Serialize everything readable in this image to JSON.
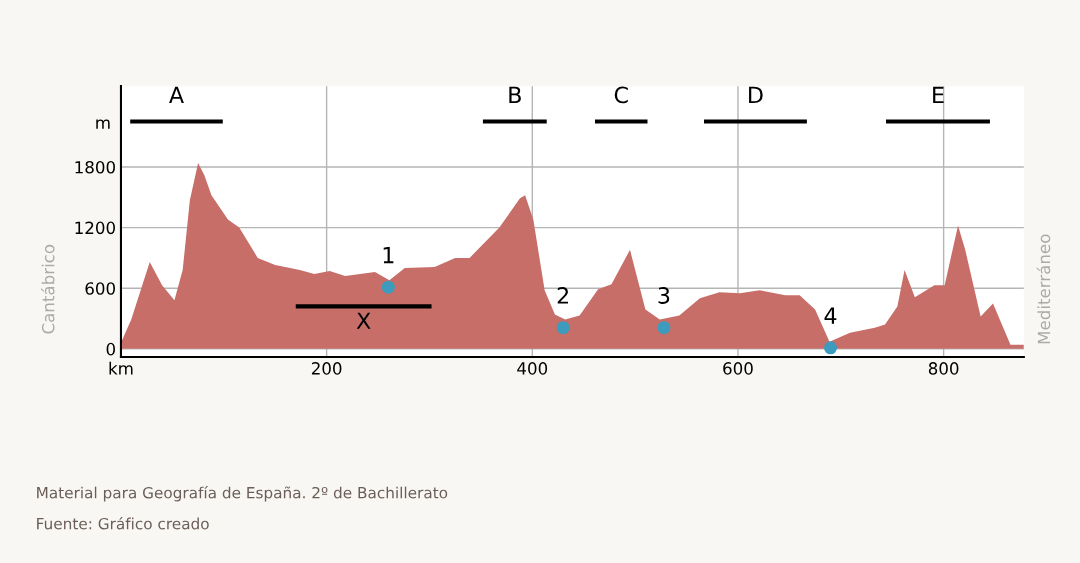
{
  "chart_data": {
    "type": "area",
    "ylabel": "Cantábrico",
    "y2label": "Mediterráneo",
    "annotations": [
      "m",
      "Material para Geografía de España. 2º de Bachillerato",
      "Fuente: Gráfico creado",
      {
        "text": "1",
        "x": 260,
        "y": 610
      },
      {
        "text": "2",
        "x": 430,
        "y": 210
      },
      {
        "text": "3",
        "x": 528,
        "y": 210
      },
      {
        "text": "4",
        "x": 690,
        "y": 10
      }
    ],
    "series": [
      {
        "color": "#c76e69",
        "x": [
          0,
          10,
          28,
          40,
          52,
          60,
          67,
          75,
          81,
          88,
          104,
          115,
          133,
          150,
          174,
          188,
          203,
          218,
          247,
          261,
          276,
          305,
          325,
          339,
          368,
          388,
          393,
          401,
          412,
          422,
          432,
          446,
          464,
          477,
          495,
          510,
          524,
          543,
          563,
          582,
          602,
          621,
          646,
          660,
          675,
          689,
          709,
          733,
          743,
          755,
          762,
          772,
          791,
          801,
          814,
          821,
          836,
          848,
          865,
          878
        ],
        "values": [
          60,
          290,
          860,
          630,
          480,
          780,
          1470,
          1840,
          1720,
          1520,
          1280,
          1200,
          900,
          830,
          780,
          740,
          770,
          720,
          760,
          680,
          800,
          810,
          900,
          900,
          1200,
          1490,
          1520,
          1280,
          580,
          340,
          290,
          330,
          590,
          640,
          980,
          390,
          290,
          330,
          500,
          560,
          550,
          580,
          530,
          530,
          390,
          70,
          160,
          210,
          240,
          420,
          780,
          510,
          630,
          630,
          1220,
          980,
          320,
          450,
          40,
          40
        ]
      },
      {
        "type": "scatter",
        "color": "#3d9bbd",
        "x": [
          260,
          430,
          528,
          690
        ],
        "values": [
          610,
          210,
          210,
          10
        ]
      },
      {
        "type": "line",
        "name": "X",
        "color": "#000000",
        "x": [
          172,
          300
        ],
        "values": [
          420,
          420
        ]
      },
      {
        "type": "line",
        "name": "A",
        "color": "#000000",
        "x": [
          11,
          97
        ],
        "values": [
          2250,
          2250
        ]
      },
      {
        "type": "line",
        "name": "B",
        "color": "#000000",
        "x": [
          354,
          412
        ],
        "values": [
          2250,
          2250
        ]
      },
      {
        "type": "line",
        "name": "C",
        "color": "#000000",
        "x": [
          463,
          510
        ],
        "values": [
          2250,
          2250
        ]
      },
      {
        "type": "line",
        "name": "D",
        "color": "#000000",
        "x": [
          569,
          665
        ],
        "values": [
          2250,
          2250
        ]
      },
      {
        "type": "line",
        "name": "E",
        "color": "#000000",
        "x": [
          746,
          843
        ],
        "values": [
          2250,
          2250
        ]
      }
    ],
    "xlim": [
      0,
      878
    ],
    "ylim": [
      -80,
      2600
    ],
    "xticks": [
      {
        "value": 0,
        "label": "km"
      },
      200,
      400,
      600,
      800
    ],
    "yticks": [
      0,
      600,
      1200,
      1800
    ],
    "grid": true
  }
}
